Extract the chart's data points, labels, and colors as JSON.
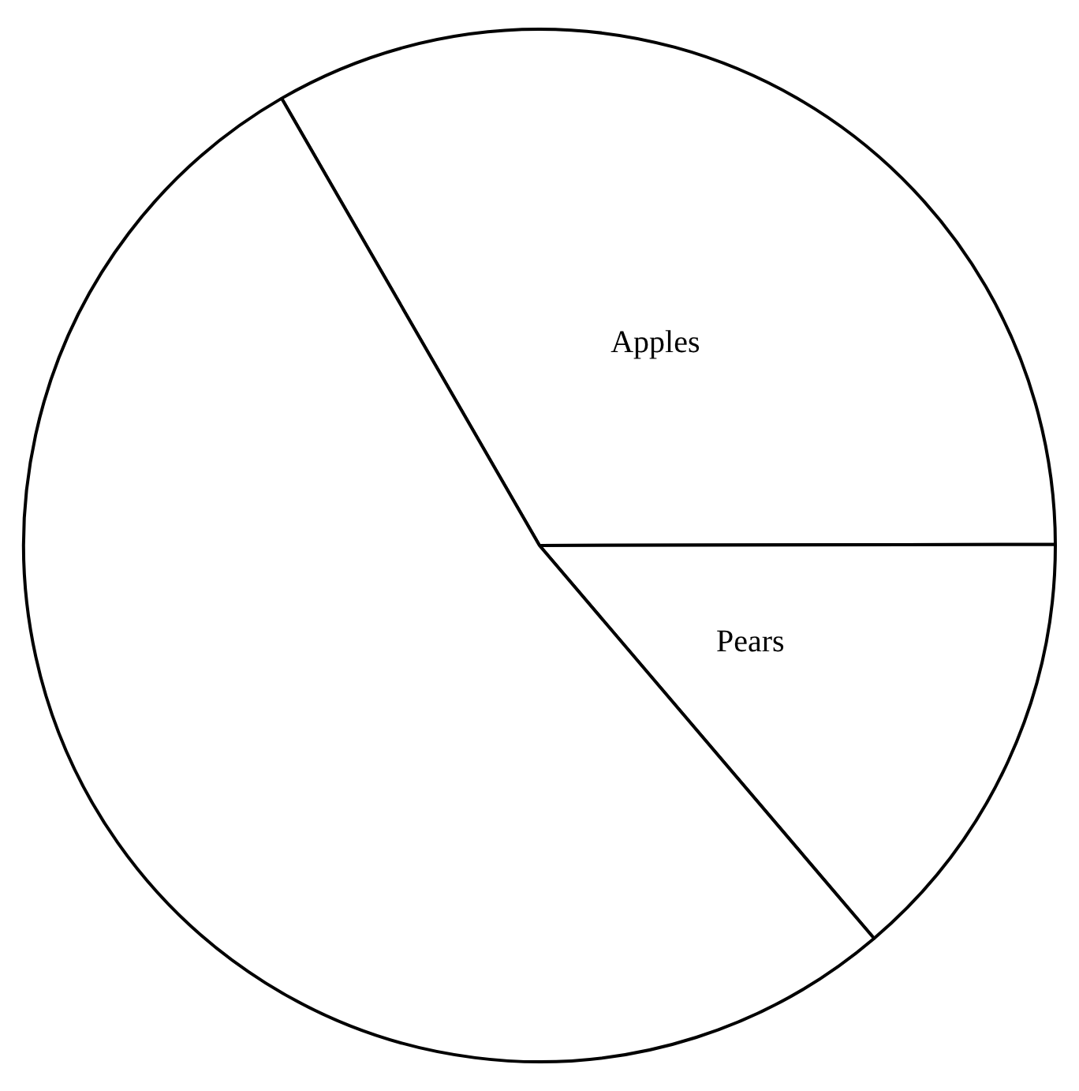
{
  "chart_data": {
    "type": "pie",
    "categories": [
      "Apples",
      "Pears",
      null
    ],
    "values": [
      33.3,
      13.8,
      52.9
    ],
    "colors": [
      "#ffffff",
      "#ffffff",
      "#ffffff"
    ],
    "legend": false
  }
}
